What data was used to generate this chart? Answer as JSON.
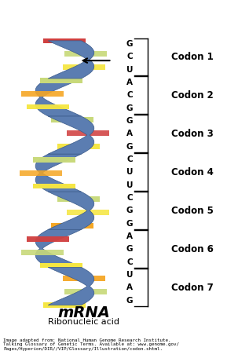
{
  "title": "mRNA",
  "subtitle": "Ribonucleic acid",
  "caption": "Image adapted from: National Human Genome Research Institute.\nTalking Glossary of Genetic Terms. Available at: www.genome.gov/\nPages/Hyperion/DIR//VIP/Glossary/Illustration/codon.shtml.",
  "codons": [
    "Codon 1",
    "Codon 2",
    "Codon 3",
    "Codon 4",
    "Codon 5",
    "Codon 6",
    "Codon 7"
  ],
  "nucleotides": [
    "G",
    "C",
    "U",
    "A",
    "C",
    "G",
    "G",
    "A",
    "G",
    "C",
    "U",
    "U",
    "C",
    "G",
    "G",
    "A",
    "G",
    "C",
    "U",
    "A",
    "G"
  ],
  "helix_color": "#5b7db1",
  "helix_edge_color": "#3a5a8a",
  "background_color": "#ffffff",
  "base_colors": {
    "yellow": "#f5e642",
    "light_green": "#c8d97a",
    "orange": "#f5a623",
    "red": "#d04040",
    "green": "#8ab870"
  }
}
